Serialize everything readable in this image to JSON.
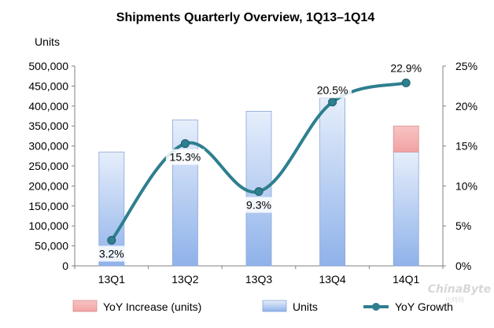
{
  "chart_data": {
    "type": "bar",
    "title": "Shipments Quarterly Overview, 1Q13–1Q14",
    "ylabel_left": "Units",
    "categories": [
      "13Q1",
      "13Q2",
      "13Q3",
      "13Q4",
      "14Q1"
    ],
    "ylim_left": [
      0,
      500000
    ],
    "ylim_right": [
      0,
      0.25
    ],
    "y_ticks_left": [
      "500,000",
      "450,000",
      "400,000",
      "350,000",
      "300,000",
      "250,000",
      "200,000",
      "150,000",
      "100,000",
      "50,000",
      "0"
    ],
    "y_ticks_right": [
      "25%",
      "20%",
      "15%",
      "10%",
      "5%",
      "0%"
    ],
    "grid": false,
    "legend_position": "bottom",
    "series": [
      {
        "name": "Units",
        "kind": "bar",
        "color": "#c9dbf7",
        "values": [
          285000,
          365000,
          387000,
          420000,
          285000
        ]
      },
      {
        "name": "YoY Increase (units)",
        "kind": "bar-stacked",
        "color": "#f8b8b8",
        "values": [
          0,
          0,
          0,
          0,
          65000
        ]
      },
      {
        "name": "YoY Growth",
        "kind": "line",
        "axis": "right",
        "color": "#2e7f8f",
        "values": [
          0.032,
          0.153,
          0.093,
          0.205,
          0.229
        ],
        "labels": [
          "3.2%",
          "15.3%",
          "9.3%",
          "20.5%",
          "22.9%"
        ]
      }
    ],
    "legend": [
      "YoY Increase (units)",
      "Units",
      "YoY Growth"
    ]
  },
  "watermark": {
    "text": "ChinaByte",
    "subtext": "比特网"
  }
}
